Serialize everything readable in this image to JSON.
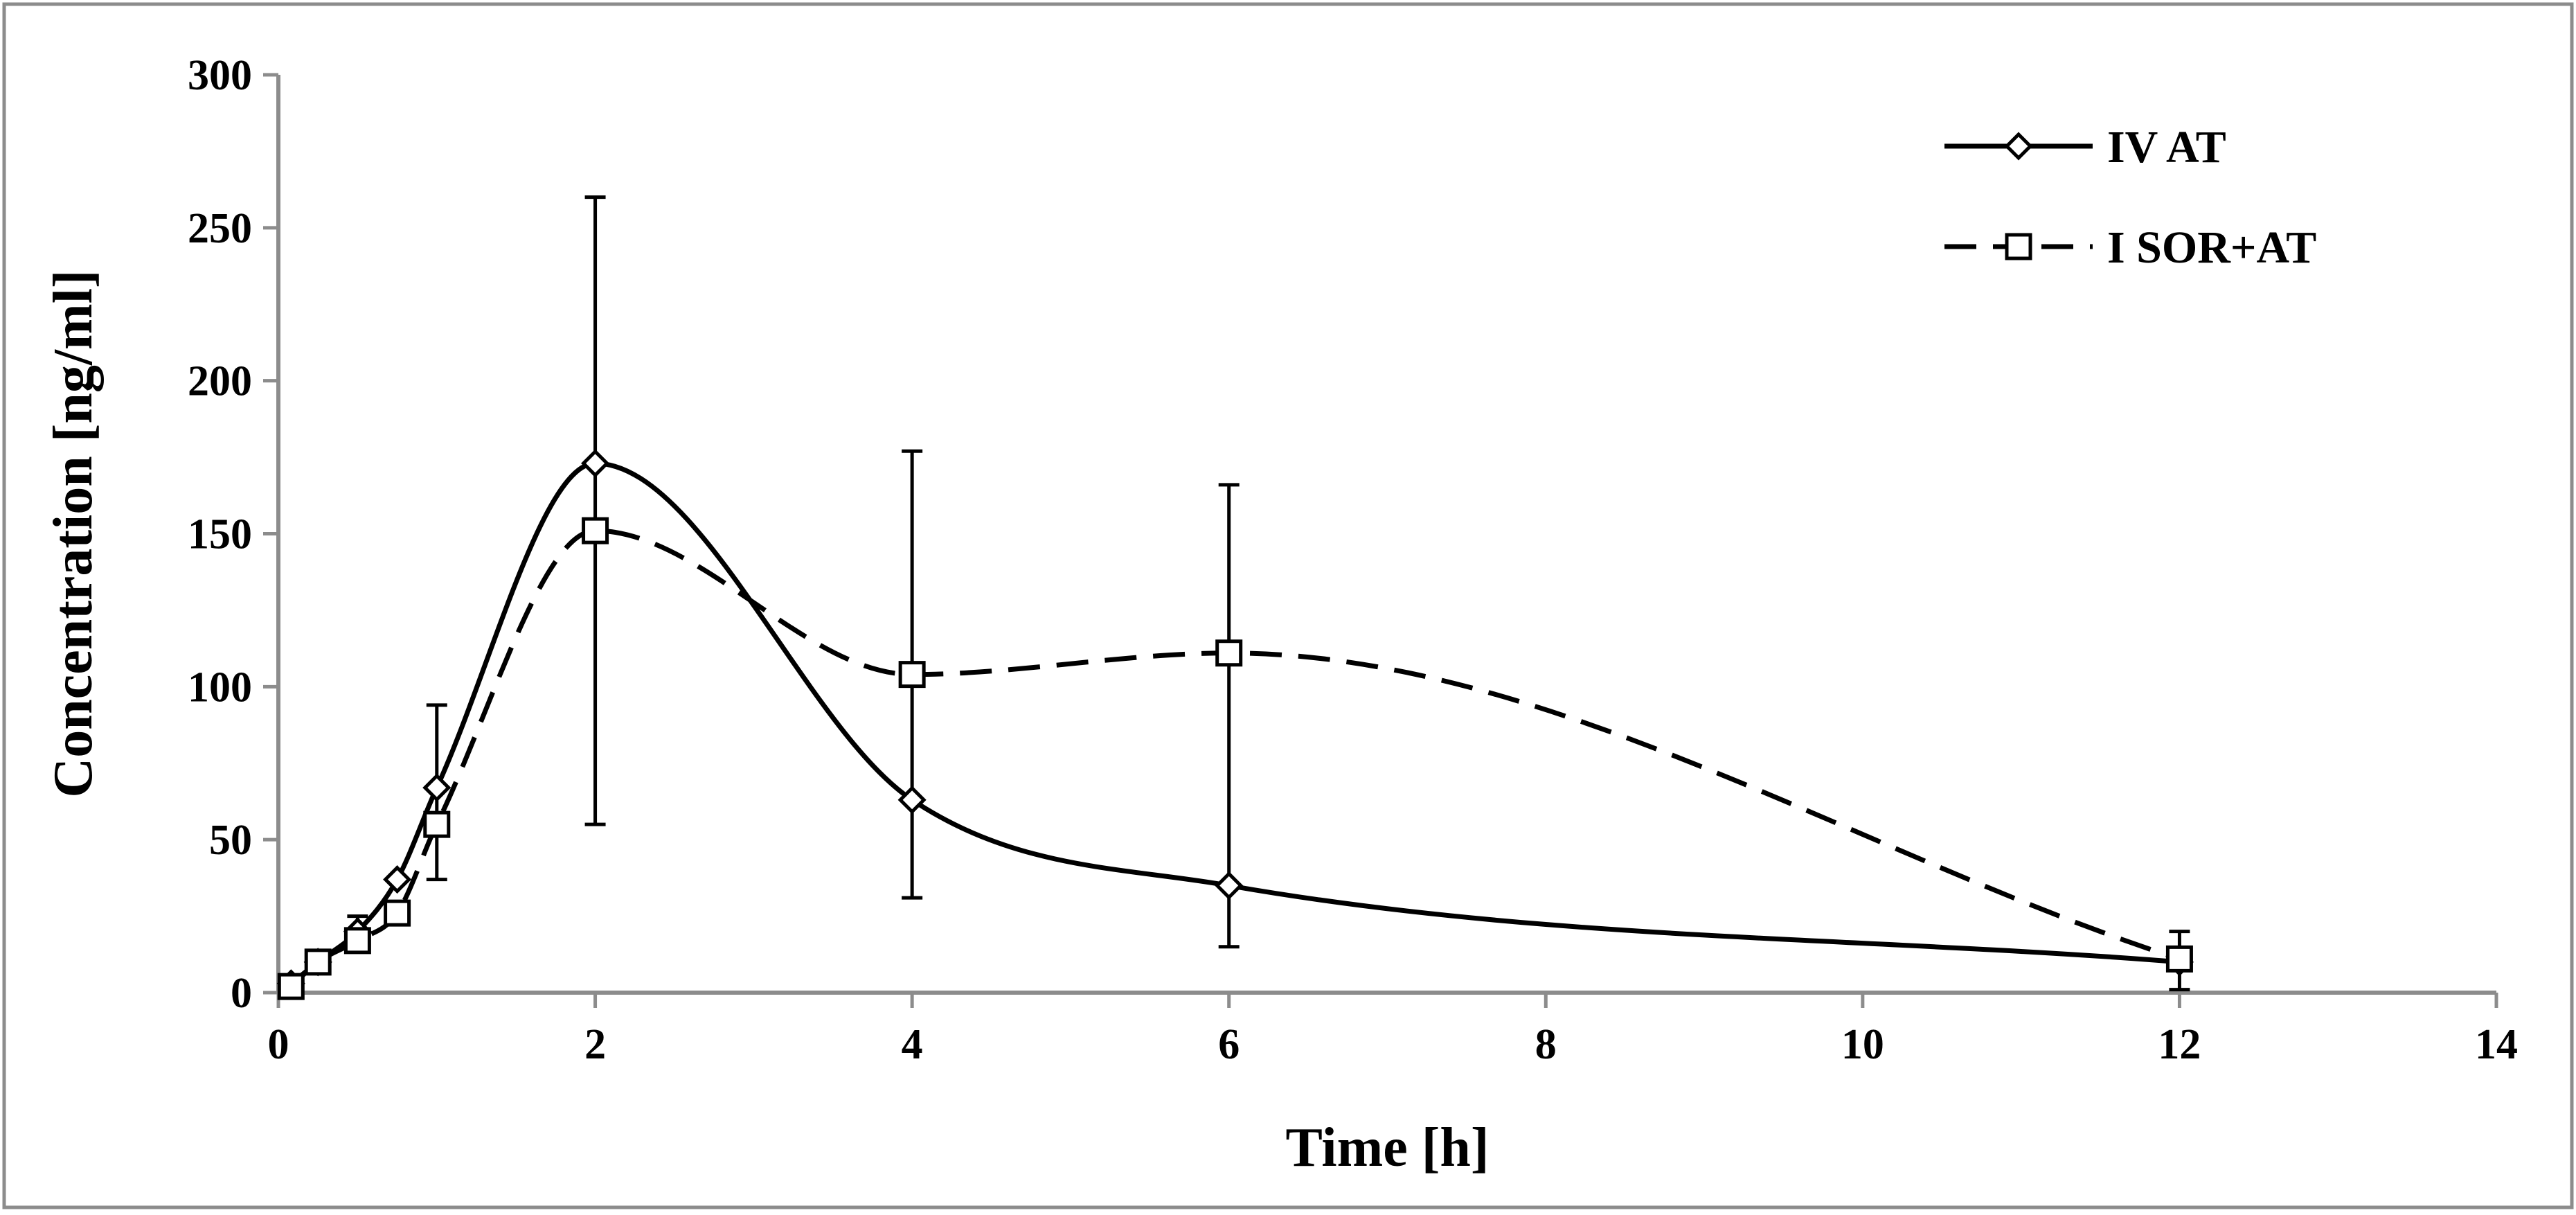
{
  "chart_data": {
    "type": "line",
    "title": "",
    "xlabel": "Time [h]",
    "ylabel": "Concentration [ng/ml]",
    "xlim": [
      0,
      14
    ],
    "ylim": [
      0,
      300
    ],
    "x_ticks": [
      0,
      2,
      4,
      6,
      8,
      10,
      12,
      14
    ],
    "y_ticks": [
      0,
      50,
      100,
      150,
      200,
      250,
      300
    ],
    "x_tick_labels": [
      "0",
      "2",
      "4",
      "6",
      "8",
      "10",
      "12",
      "14"
    ],
    "y_tick_labels": [
      "0",
      "50",
      "100",
      "150",
      "200",
      "250",
      "300"
    ],
    "grid": false,
    "legend_position": "top-right",
    "series": [
      {
        "name": "IV AT",
        "marker": "diamond",
        "line_style": "solid",
        "x": [
          0.08,
          0.25,
          0.5,
          0.75,
          1,
          2,
          4,
          6,
          12
        ],
        "y": [
          3,
          10,
          20,
          37,
          67,
          173,
          63,
          35,
          10
        ],
        "error_upper": [
          null,
          null,
          25,
          null,
          94,
          260,
          177,
          166,
          20
        ],
        "error_lower": [
          null,
          null,
          null,
          null,
          37,
          55,
          31,
          15,
          null
        ]
      },
      {
        "name": "I SOR+AT",
        "marker": "square",
        "line_style": "dashed",
        "x": [
          0.08,
          0.25,
          0.5,
          0.75,
          1,
          2,
          4,
          6,
          12
        ],
        "y": [
          2,
          10,
          17,
          26,
          55,
          151,
          104,
          111,
          11
        ],
        "error_upper": [
          null,
          null,
          null,
          null,
          null,
          null,
          null,
          null,
          null
        ],
        "error_lower": [
          null,
          null,
          null,
          null,
          null,
          null,
          null,
          null,
          1
        ]
      }
    ]
  }
}
